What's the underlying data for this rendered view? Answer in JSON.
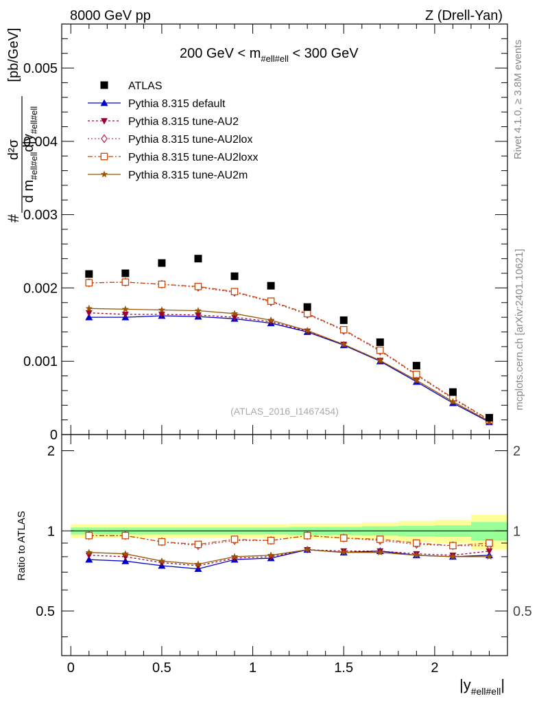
{
  "header": {
    "left": "8000 GeV pp",
    "right": "Z (Drell-Yan)"
  },
  "side_labels": {
    "rivet": "Rivet 4.1.0, ≥ 3.8M events",
    "mcplots": "mcplots.cern.ch [arXiv:2401.10621]"
  },
  "chart_data": {
    "type": "scatter",
    "title": "200 GeV < m_{#ell#ell} < 300 GeV",
    "title_main_a": "200 GeV < m",
    "title_sub": "#ell#ell",
    "title_main_b": " < 300 GeV",
    "ylabel_top": "d²σ / d m_{#ell#ell} d|y_{#ell#ell}| [pb/GeV]",
    "ylabel_num": "d²σ",
    "ylabel_den_a": "d m",
    "ylabel_den_sub": "#ell#ell",
    "ylabel_den_b": "d|y",
    "ylabel_den_sub2": "#ell#ell",
    "ylabel_unit": "[pb/GeV]",
    "ylabel_hash": "#",
    "ylabel_ratio": "Ratio to ATLAS",
    "xlabel_main": "|y",
    "xlabel_sub": "#ell#ell",
    "xlabel_end": "|",
    "watermark": "(ATLAS_2016_I1467454)",
    "xlim": [
      -0.05,
      2.4
    ],
    "ylim": [
      0,
      0.0056
    ],
    "ratio_ylim": [
      0.34,
      2.3
    ],
    "x_ticks": [
      0,
      0.5,
      1,
      1.5,
      2
    ],
    "x_tick_labels": [
      "0",
      "0.5",
      "1",
      "1.5",
      "2"
    ],
    "y_ticks": [
      0,
      0.001,
      0.002,
      0.003,
      0.004,
      0.005
    ],
    "y_tick_labels": [
      "0",
      "0.001",
      "0.002",
      "0.003",
      "0.004",
      "0.005"
    ],
    "ratio_ticks": [
      0.5,
      1,
      2
    ],
    "ratio_tick_labels": [
      "0.5",
      "1",
      "2"
    ],
    "x": [
      0.1,
      0.3,
      0.5,
      0.7,
      0.9,
      1.1,
      1.3,
      1.5,
      1.7,
      1.9,
      2.1,
      2.3
    ],
    "bin_edges": [
      0,
      0.2,
      0.4,
      0.6,
      0.8,
      1.0,
      1.2,
      1.4,
      1.6,
      1.8,
      2.0,
      2.2,
      2.4
    ],
    "data": {
      "name": "ATLAS",
      "values": [
        0.00219,
        0.0022,
        0.00234,
        0.0024,
        0.00216,
        0.00203,
        0.00174,
        0.00156,
        0.00126,
        0.00094,
        0.00058,
        0.00023
      ],
      "band_green": [
        0.03,
        0.03,
        0.03,
        0.03,
        0.03,
        0.03,
        0.035,
        0.035,
        0.04,
        0.045,
        0.05,
        0.08
      ],
      "band_yellow": [
        0.06,
        0.06,
        0.06,
        0.06,
        0.06,
        0.06,
        0.065,
        0.065,
        0.075,
        0.09,
        0.1,
        0.15
      ]
    },
    "series": [
      {
        "name": "Pythia 8.315 default",
        "color": "#0000cc",
        "dash": "",
        "marker": "triangle-up",
        "values": [
          0.0016,
          0.0016,
          0.00162,
          0.00161,
          0.00158,
          0.00152,
          0.0014,
          0.00122,
          0.001,
          0.00072,
          0.00043,
          0.00017
        ],
        "ratio": [
          0.78,
          0.77,
          0.74,
          0.72,
          0.78,
          0.79,
          0.85,
          0.83,
          0.84,
          0.81,
          0.8,
          0.81
        ]
      },
      {
        "name": "Pythia 8.315 tune-AU2",
        "color": "#990033",
        "dash": "3,3",
        "marker": "triangle-down",
        "values": [
          0.00166,
          0.00164,
          0.00164,
          0.00163,
          0.0016,
          0.00154,
          0.00141,
          0.00123,
          0.00101,
          0.00074,
          0.00045,
          0.00018
        ],
        "ratio": [
          0.81,
          0.8,
          0.76,
          0.74,
          0.79,
          0.8,
          0.85,
          0.84,
          0.84,
          0.82,
          0.81,
          0.84
        ]
      },
      {
        "name": "Pythia 8.315 tune-AU2lox",
        "color": "#b33355",
        "dash": "2,3",
        "marker": "diamond-open",
        "values": [
          0.00207,
          0.00208,
          0.00205,
          0.00201,
          0.00194,
          0.00181,
          0.00164,
          0.00142,
          0.00114,
          0.00081,
          0.00049,
          0.00019
        ],
        "ratio": [
          0.96,
          0.96,
          0.91,
          0.88,
          0.92,
          0.92,
          0.96,
          0.94,
          0.92,
          0.89,
          0.88,
          0.88
        ]
      },
      {
        "name": "Pythia 8.315 tune-AU2loxx",
        "color": "#cc4400",
        "dash": "7,3,2,3",
        "marker": "square-open",
        "values": [
          0.00207,
          0.00208,
          0.00205,
          0.00202,
          0.00195,
          0.00182,
          0.00165,
          0.00143,
          0.00115,
          0.00082,
          0.0005,
          0.0002
        ],
        "ratio": [
          0.96,
          0.96,
          0.91,
          0.89,
          0.93,
          0.92,
          0.96,
          0.94,
          0.93,
          0.9,
          0.88,
          0.9
        ]
      },
      {
        "name": "Pythia 8.315 tune-AU2m",
        "color": "#995500",
        "dash": "",
        "marker": "star",
        "values": [
          0.00172,
          0.00171,
          0.0017,
          0.00169,
          0.00165,
          0.00156,
          0.00142,
          0.00123,
          0.00101,
          0.00074,
          0.00045,
          0.00018
        ],
        "ratio": [
          0.83,
          0.82,
          0.77,
          0.75,
          0.8,
          0.81,
          0.85,
          0.83,
          0.83,
          0.81,
          0.8,
          0.8
        ]
      }
    ]
  }
}
